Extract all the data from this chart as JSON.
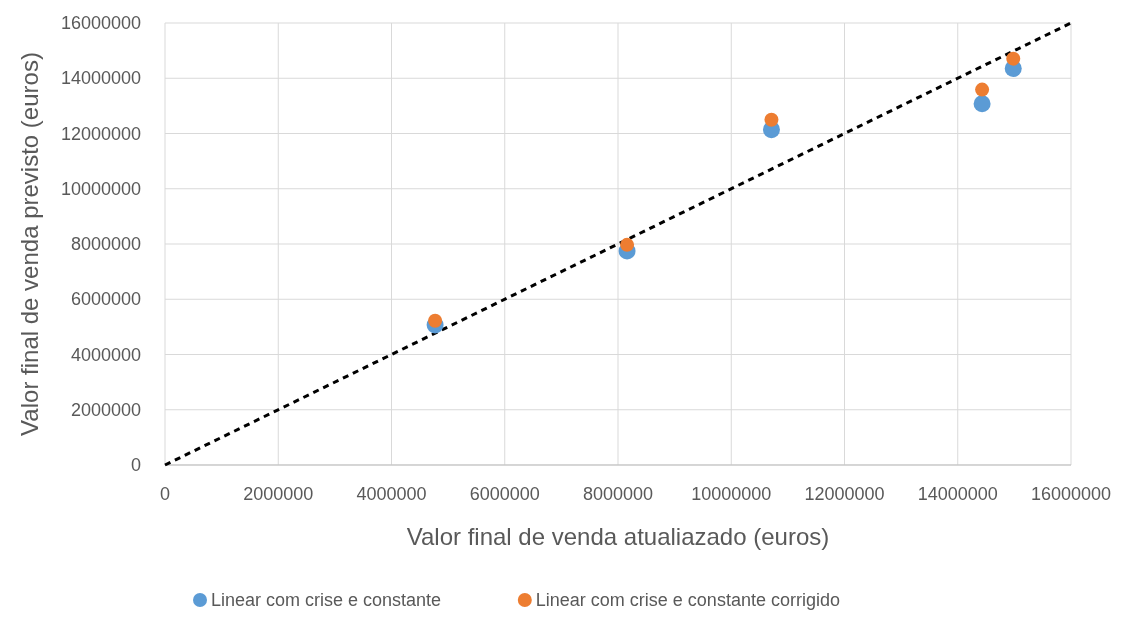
{
  "chart_data": {
    "type": "scatter",
    "xlabel": "Valor final de venda atualiazado (euros)",
    "ylabel": "Valor final de venda previsto (euros)",
    "xlim": [
      0,
      16000000
    ],
    "ylim": [
      0,
      16000000
    ],
    "xticks": [
      0,
      2000000,
      4000000,
      6000000,
      8000000,
      10000000,
      12000000,
      14000000,
      16000000
    ],
    "yticks": [
      0,
      2000000,
      4000000,
      6000000,
      8000000,
      10000000,
      12000000,
      14000000,
      16000000
    ],
    "grid": true,
    "legend": "bottom",
    "marker": "circle",
    "series": [
      {
        "type": "line",
        "color": "#000000",
        "line_style": "dashed",
        "marker": "none",
        "x": [
          0,
          16000000
        ],
        "values": [
          0,
          16000000
        ]
      },
      {
        "name": "Linear com crise e constante",
        "color": "#5b9bd5",
        "x": [
          4770000,
          8160000,
          10710000,
          14430000,
          14980000
        ],
        "values": [
          5070000,
          7750000,
          12140000,
          13080000,
          14350000
        ]
      },
      {
        "name": "Linear com crise e constante corrigido",
        "color": "#ed7d31",
        "x": [
          4770000,
          8160000,
          10710000,
          14430000,
          14980000
        ],
        "values": [
          5220000,
          7970000,
          12500000,
          13590000,
          14710000
        ]
      }
    ]
  }
}
